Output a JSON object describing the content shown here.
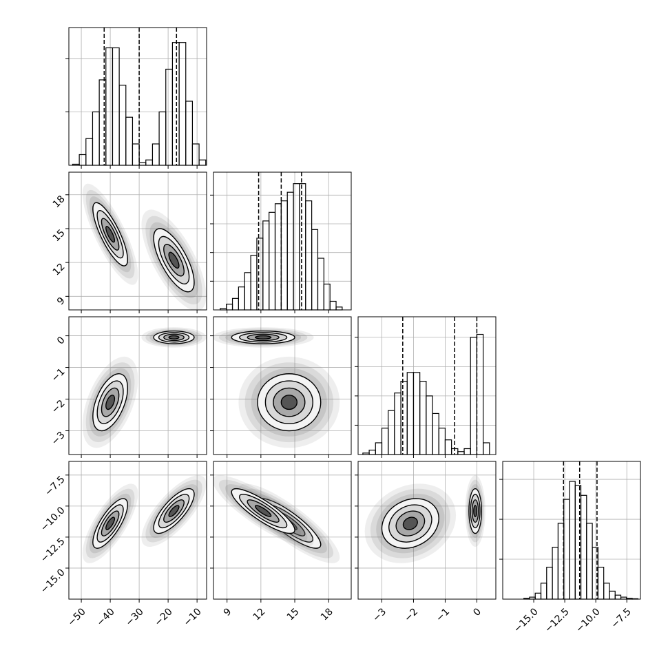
{
  "chart_data": {
    "type": "corner",
    "grid": true,
    "variables": [
      {
        "lim": [
          -54.3,
          -6.7
        ],
        "ticks": [
          {
            "value": -50,
            "label": "−50"
          },
          {
            "value": -40,
            "label": "−40"
          },
          {
            "value": -30,
            "label": "−30"
          },
          {
            "value": -20,
            "label": "−20"
          },
          {
            "value": -10,
            "label": "−10"
          }
        ],
        "bins": [
          -53,
          -50.7,
          -48.4,
          -46.1,
          -43.8,
          -41.5,
          -39.2,
          -36.9,
          -34.6,
          -32.3,
          -30,
          -27.7,
          -25.4,
          -23.1,
          -20.8,
          -18.5,
          -16.2,
          -13.9,
          -11.6,
          -9.3,
          -7
        ],
        "counts": [
          0.02,
          0.2,
          0.5,
          1.0,
          1.6,
          2.2,
          2.2,
          1.5,
          0.9,
          0.4,
          0.05,
          0.1,
          0.4,
          1.0,
          1.8,
          2.3,
          2.3,
          1.2,
          0.4,
          0.1
        ],
        "hist_ylim": [
          0,
          2.58
        ],
        "hist_yticks": [
          1,
          2
        ],
        "quantiles": [
          -42.1,
          -30,
          -17.1
        ]
      },
      {
        "lim": [
          7.8,
          20
        ],
        "ticks": [
          9,
          12,
          15,
          18
        ],
        "bins": [
          8.4,
          8.94,
          9.48,
          10.02,
          10.56,
          11.1,
          11.64,
          12.18,
          12.72,
          13.26,
          13.8,
          14.34,
          14.88,
          15.42,
          15.96,
          16.5,
          17.04,
          17.58,
          18.12,
          18.66,
          19.2
        ],
        "counts": [
          0.05,
          0.2,
          0.4,
          0.8,
          1.3,
          1.9,
          2.5,
          3.1,
          3.4,
          3.7,
          3.8,
          4.1,
          4.4,
          4.4,
          3.8,
          2.8,
          1.8,
          0.9,
          0.3,
          0.1
        ],
        "hist_ylim": [
          0,
          4.8
        ],
        "hist_yticks": [
          1,
          2,
          3,
          4
        ],
        "quantiles": [
          11.8,
          13.8,
          15.6
        ]
      },
      {
        "lim": [
          -3.75,
          0.6
        ],
        "ticks": [
          {
            "value": -3,
            "label": "−3"
          },
          {
            "value": -2,
            "label": "−2"
          },
          {
            "value": -1,
            "label": "−1"
          },
          0
        ],
        "bins": [
          -3.6,
          -3.4,
          -3.2,
          -3.0,
          -2.8,
          -2.6,
          -2.4,
          -2.2,
          -2.0,
          -1.8,
          -1.6,
          -1.4,
          -1.2,
          -1.0,
          -0.8,
          -0.6,
          -0.4,
          -0.2,
          0.0,
          0.2,
          0.4
        ],
        "counts": [
          0.05,
          0.15,
          0.4,
          0.9,
          1.5,
          2.1,
          2.5,
          2.8,
          2.8,
          2.5,
          2.0,
          1.4,
          0.9,
          0.5,
          0.2,
          0.1,
          0.2,
          4.0,
          4.1,
          0.4
        ],
        "hist_ylim": [
          0,
          4.7
        ],
        "hist_yticks": [
          1,
          2,
          3,
          4
        ],
        "quantiles": [
          -2.34,
          -0.7,
          0.0
        ]
      },
      {
        "lim": [
          -17.5,
          -6.4
        ],
        "ticks": [
          {
            "value": -15,
            "label": "−15.0"
          },
          {
            "value": -12.5,
            "label": "−12.5"
          },
          {
            "value": -10,
            "label": "−10.0"
          },
          {
            "value": -7.5,
            "label": "−7.5"
          }
        ],
        "bins": [
          -15.8,
          -15.34,
          -14.88,
          -14.42,
          -13.96,
          -13.5,
          -13.04,
          -12.58,
          -12.12,
          -11.66,
          -11.2,
          -10.74,
          -10.28,
          -9.82,
          -9.36,
          -8.9,
          -8.44,
          -7.98,
          -7.52,
          -7.06,
          -6.6
        ],
        "counts": [
          0.02,
          0.05,
          0.15,
          0.4,
          0.8,
          1.3,
          1.9,
          2.5,
          2.95,
          2.85,
          2.6,
          1.9,
          1.3,
          0.8,
          0.4,
          0.2,
          0.1,
          0.05,
          0.02,
          0.01
        ],
        "hist_ylim": [
          0,
          3.45
        ],
        "hist_yticks": [
          1,
          2,
          3
        ],
        "quantiles": [
          -12.6,
          -11.3,
          -9.9
        ]
      }
    ],
    "modes": [
      {
        "mean": [
          -40,
          14.5,
          -2.1,
          -11.4
        ],
        "sd": [
          3,
          1.4,
          0.45,
          1.0
        ],
        "corr": [
          [],
          [
            -0.8
          ],
          [
            0.5,
            0
          ],
          [
            0.75,
            -0.85,
            0.2
          ]
        ]
      },
      {
        "mean": [
          -18,
          12.2,
          -0.05,
          -10.4
        ],
        "sd": [
          3.5,
          1.4,
          0.1,
          0.9
        ],
        "corr": [
          [],
          [
            -0.7
          ],
          [
            0,
            0
          ],
          [
            0.75,
            -0.85,
            0
          ]
        ]
      }
    ]
  }
}
